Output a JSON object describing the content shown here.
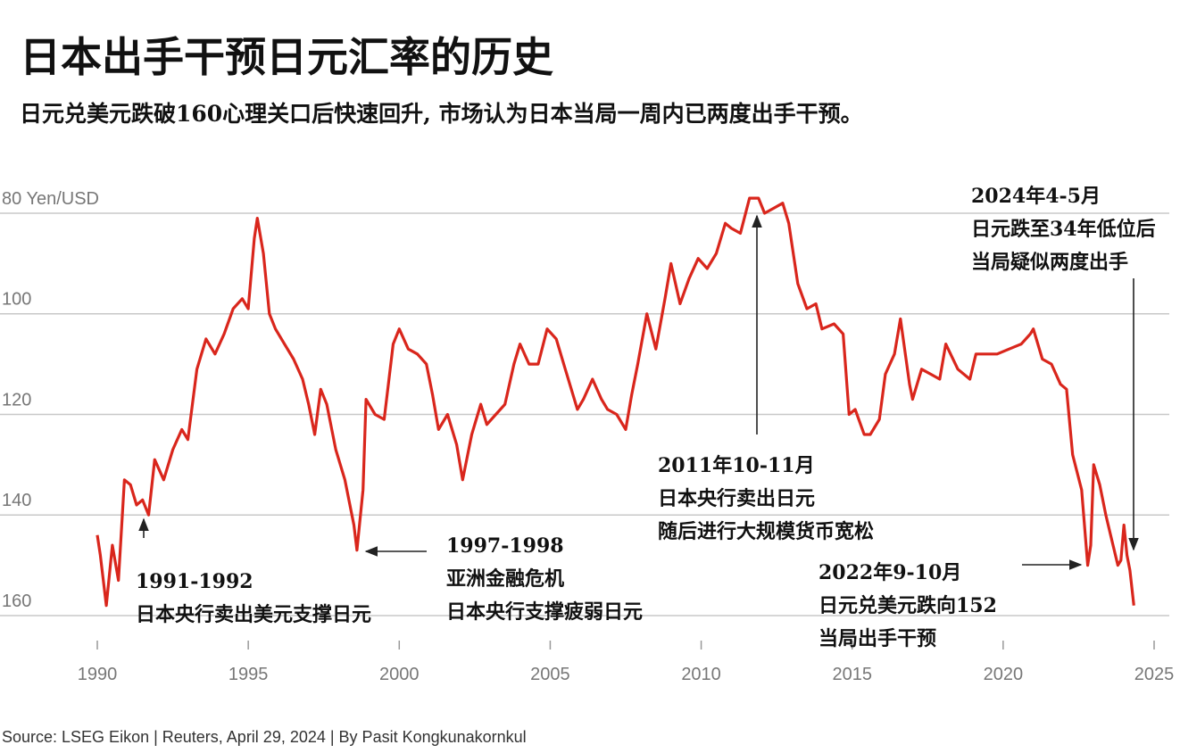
{
  "chart_data": {
    "type": "line",
    "title": "日本出手干预日元汇率的历史",
    "subtitle": "日元兑美元跌破160心理关口后快速回升, 市场认为日本当局一周内已两度出手干预。",
    "source": "Source: LSEG Eikon | Reuters, April 29, 2024 | By Pasit Kongkunakornkul",
    "color": "#d9261c",
    "y_reversed": true,
    "grid": true,
    "xlim": [
      1990,
      2025
    ],
    "xticks": [
      1990,
      1995,
      2000,
      2005,
      2010,
      2015,
      2020,
      2025
    ],
    "ylim": [
      75,
      160
    ],
    "yticks": [
      {
        "value": 80,
        "label": "80 Yen/USD"
      },
      100,
      120,
      140,
      160
    ],
    "x": [
      1990.0,
      1990.1,
      1990.3,
      1990.5,
      1990.7,
      1990.9,
      1991.1,
      1991.3,
      1991.5,
      1991.7,
      1991.9,
      1992.2,
      1992.5,
      1992.8,
      1993.0,
      1993.3,
      1993.6,
      1993.9,
      1994.2,
      1994.5,
      1994.8,
      1995.0,
      1995.2,
      1995.3,
      1995.5,
      1995.7,
      1995.9,
      1996.2,
      1996.5,
      1996.8,
      1997.0,
      1997.2,
      1997.4,
      1997.6,
      1997.9,
      1998.2,
      1998.5,
      1998.6,
      1998.8,
      1998.9,
      1999.2,
      1999.5,
      1999.8,
      2000.0,
      2000.3,
      2000.6,
      2000.9,
      2001.1,
      2001.3,
      2001.6,
      2001.9,
      2002.1,
      2002.4,
      2002.7,
      2002.9,
      2003.2,
      2003.5,
      2003.8,
      2004.0,
      2004.3,
      2004.6,
      2004.9,
      2005.2,
      2005.5,
      2005.9,
      2006.1,
      2006.4,
      2006.7,
      2006.9,
      2007.2,
      2007.5,
      2007.7,
      2007.9,
      2008.2,
      2008.5,
      2008.8,
      2009.0,
      2009.3,
      2009.6,
      2009.9,
      2010.2,
      2010.5,
      2010.8,
      2011.0,
      2011.3,
      2011.6,
      2011.9,
      2012.1,
      2012.4,
      2012.7,
      2012.9,
      2013.2,
      2013.5,
      2013.8,
      2014.0,
      2014.4,
      2014.7,
      2014.9,
      2015.1,
      2015.4,
      2015.6,
      2015.9,
      2016.1,
      2016.4,
      2016.6,
      2016.9,
      2017.0,
      2017.3,
      2017.6,
      2017.9,
      2018.1,
      2018.5,
      2018.9,
      2019.1,
      2019.5,
      2019.8,
      2020.2,
      2020.6,
      2020.9,
      2021.0,
      2021.3,
      2021.6,
      2021.9,
      2022.1,
      2022.3,
      2022.6,
      2022.8,
      2022.9,
      2023.0,
      2023.2,
      2023.4,
      2023.6,
      2023.8,
      2023.9,
      2024.0,
      2024.1,
      2024.2,
      2024.33
    ],
    "values": [
      144,
      148,
      158,
      146,
      153,
      133,
      134,
      138,
      137,
      140,
      129,
      133,
      127,
      123,
      125,
      111,
      105,
      108,
      104,
      99,
      97,
      99,
      85,
      81,
      88,
      100,
      103,
      106,
      109,
      113,
      118,
      124,
      115,
      118,
      127,
      133,
      142,
      147,
      135,
      117,
      120,
      121,
      106,
      103,
      107,
      108,
      110,
      116,
      123,
      120,
      126,
      133,
      124,
      118,
      122,
      120,
      118,
      110,
      106,
      110,
      110,
      103,
      105,
      111,
      119,
      117,
      113,
      117,
      119,
      120,
      123,
      116,
      110,
      100,
      107,
      97,
      90,
      98,
      93,
      89,
      91,
      88,
      82,
      83,
      84,
      77,
      77,
      80,
      79,
      78,
      82,
      94,
      99,
      98,
      103,
      102,
      104,
      120,
      119,
      124,
      124,
      121,
      112,
      108,
      101,
      114,
      117,
      111,
      112,
      113,
      106,
      111,
      113,
      108,
      108,
      108,
      107,
      106,
      104,
      103,
      109,
      110,
      114,
      115,
      128,
      135,
      150,
      146,
      130,
      134,
      140,
      145,
      150,
      149,
      142,
      148,
      151,
      158
    ],
    "annotations": [
      {
        "lines": [
          "1991-1992",
          "日本央行卖出美元支撑日元"
        ]
      },
      {
        "lines": [
          "1997-1998",
          "亚洲金融危机",
          "日本央行支撑疲弱日元"
        ]
      },
      {
        "lines": [
          "2011年10-11月",
          "日本央行卖出日元",
          "随后进行大规模货币宽松"
        ]
      },
      {
        "lines": [
          "2022年9-10月",
          "日元兑美元跌向152",
          "当局出手干预"
        ]
      },
      {
        "lines": [
          "2024年4-5月",
          "日元跌至34年低位后",
          "当局疑似两度出手"
        ]
      }
    ]
  }
}
